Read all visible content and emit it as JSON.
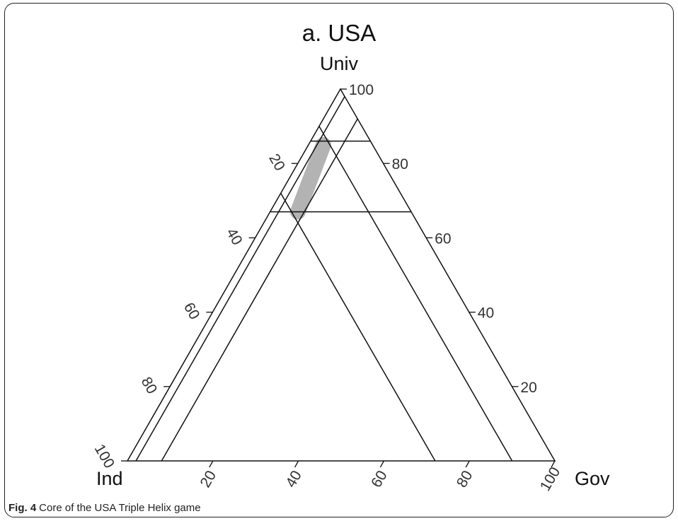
{
  "chart_data": {
    "type": "ternary",
    "title": "a. USA",
    "axes": {
      "top": "Univ",
      "left": "Ind",
      "right": "Gov"
    },
    "ticks": [
      20,
      40,
      60,
      80,
      100
    ],
    "scale": [
      0,
      100
    ],
    "grid": false,
    "lines": [
      {
        "component": "Univ",
        "value": 86
      },
      {
        "component": "Univ",
        "value": 67
      },
      {
        "component": "Ind",
        "value": 10
      },
      {
        "component": "Ind",
        "value": 28
      },
      {
        "component": "Gov",
        "value": 2
      },
      {
        "component": "Gov",
        "value": 8
      }
    ],
    "core_region": {
      "color": "#b3b3b3",
      "points": [
        {
          "Univ": 85,
          "Ind": 11.5,
          "Gov": 3.5
        },
        {
          "Univ": 67,
          "Ind": 26.5,
          "Gov": 6.5
        }
      ]
    }
  },
  "caption": {
    "label": "Fig. 4",
    "text": "Core of the USA Triple Helix game"
  }
}
